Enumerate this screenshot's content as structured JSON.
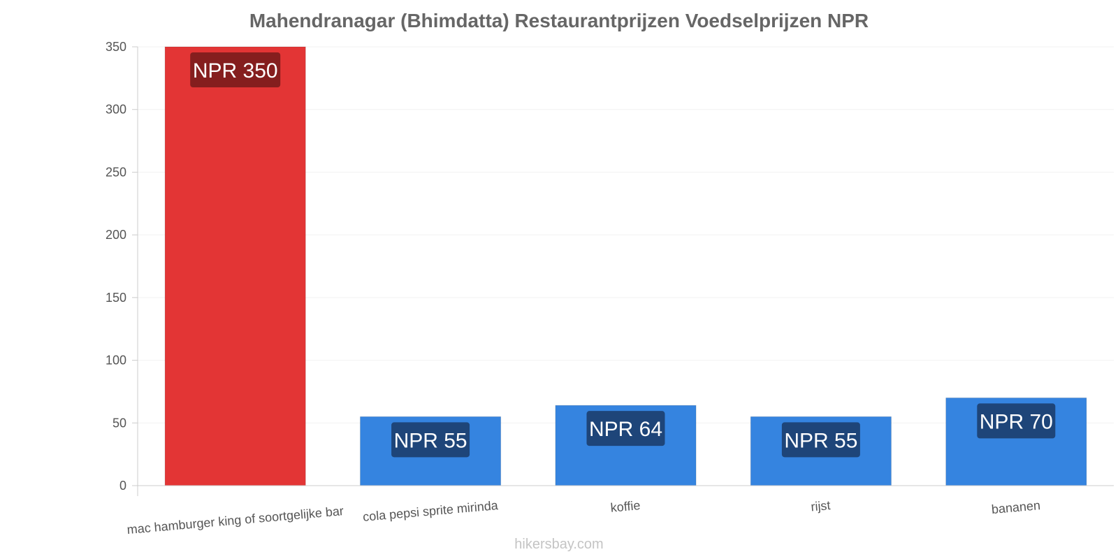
{
  "chart_data": {
    "type": "bar",
    "title": "Mahendranagar (Bhimdatta) Restaurantprijzen Voedselprijzen NPR",
    "categories": [
      "mac hamburger king of soortgelijke bar",
      "cola pepsi sprite mirinda",
      "koffie",
      "rijst",
      "bananen"
    ],
    "values": [
      350,
      55,
      64,
      55,
      70
    ],
    "value_labels": [
      "NPR 350",
      "NPR 55",
      "NPR 64",
      "NPR 55",
      "NPR 70"
    ],
    "bar_colors": [
      "#e33535",
      "#3584e0",
      "#3584e0",
      "#3584e0",
      "#3584e0"
    ],
    "label_bg_colors": [
      "#7a1c1c",
      "#1c3e6e",
      "#1c3e6e",
      "#1c3e6e",
      "#1c3e6e"
    ],
    "ylim": [
      0,
      350
    ],
    "yticks": [
      0,
      50,
      100,
      150,
      200,
      250,
      300,
      350
    ],
    "grid": true,
    "xlabel": "",
    "ylabel": ""
  },
  "watermark": "hikersbay.com"
}
